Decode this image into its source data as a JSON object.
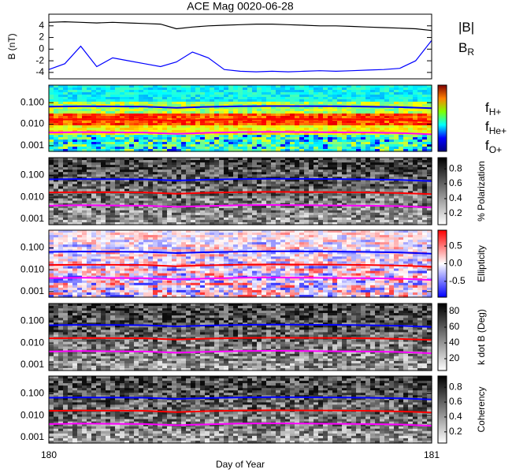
{
  "chart_data": [
    {
      "type": "line",
      "title": "ACE Mag 0020-06-28",
      "y_label": "B (nT)",
      "xlim": [
        180,
        181
      ],
      "ylim": [
        -5.1,
        6
      ],
      "yticks": [
        -4,
        -2,
        0,
        2,
        4
      ],
      "x": [
        180,
        180.0417,
        180.0833,
        180.125,
        180.1667,
        180.2083,
        180.25,
        180.2917,
        180.3333,
        180.375,
        180.4167,
        180.4583,
        180.5,
        180.5417,
        180.5833,
        180.625,
        180.6667,
        180.7083,
        180.75,
        180.7917,
        180.8333,
        180.875,
        180.9167,
        180.9583,
        181
      ],
      "series": [
        {
          "name": "|B|",
          "color": "#000000",
          "values": [
            4.6,
            4.7,
            4.6,
            4.5,
            4.6,
            4.5,
            4.4,
            4.3,
            3.5,
            3.8,
            4.0,
            4.1,
            4.2,
            4.3,
            4.3,
            4.2,
            4.1,
            4.0,
            4.0,
            3.9,
            3.8,
            3.7,
            3.6,
            3.5,
            3.2
          ]
        },
        {
          "name": "BR",
          "color": "#0000ff",
          "values": [
            -3.5,
            -2.5,
            0.5,
            -3.0,
            -1.5,
            -2.0,
            -2.5,
            -3.0,
            -2.2,
            -0.5,
            -1.5,
            -3.5,
            -3.8,
            -3.9,
            -3.8,
            -3.9,
            -3.8,
            -3.7,
            -3.8,
            -3.7,
            -3.6,
            -3.5,
            -3.3,
            -2.0,
            1.5
          ]
        }
      ]
    },
    {
      "type": "spectrogram",
      "colormap": "jet",
      "log_y": true,
      "xlim": [
        180,
        181
      ],
      "ylim": [
        0.00055,
        0.65
      ],
      "yticks": [
        {
          "value": 0.001,
          "label": "0.001"
        },
        {
          "value": 0.01,
          "label": "0.010"
        },
        {
          "value": 0.1,
          "label": "0.100"
        }
      ],
      "x": [
        180,
        180.0833,
        180.1667,
        180.25,
        180.3333,
        180.4167,
        180.5,
        180.5833,
        180.6667,
        180.75,
        180.8333,
        180.9167,
        181
      ],
      "series": [
        {
          "name": "fH+",
          "color": "#0000ff",
          "values": [
            0.066,
            0.068,
            0.067,
            0.066,
            0.058,
            0.064,
            0.068,
            0.07,
            0.069,
            0.068,
            0.066,
            0.062,
            0.055
          ]
        },
        {
          "name": "fHe+",
          "color": "#ff0000",
          "values": [
            0.0165,
            0.017,
            0.0168,
            0.0165,
            0.0145,
            0.016,
            0.017,
            0.0175,
            0.0172,
            0.017,
            0.0165,
            0.0155,
            0.0138
          ]
        },
        {
          "name": "fO+",
          "color": "#ff00ff",
          "values": [
            0.0041,
            0.0043,
            0.0042,
            0.0041,
            0.0036,
            0.004,
            0.0043,
            0.0044,
            0.0043,
            0.0042,
            0.0041,
            0.0039,
            0.0034
          ]
        }
      ]
    },
    {
      "type": "spectrogram",
      "colormap": "gray",
      "log_y": true,
      "xlim": [
        180,
        181
      ],
      "ylim": [
        0.00055,
        0.65
      ],
      "yticks": [
        {
          "value": 0.001,
          "label": "0.001"
        },
        {
          "value": 0.01,
          "label": "0.010"
        },
        {
          "value": 0.1,
          "label": "0.100"
        }
      ],
      "colorbar": {
        "label": "% Polarization",
        "lim": [
          0.05,
          0.95
        ],
        "ticks": [
          0.2,
          0.4,
          0.6,
          0.8
        ]
      }
    },
    {
      "type": "spectrogram",
      "colormap": "bwr",
      "log_y": true,
      "xlim": [
        180,
        181
      ],
      "ylim": [
        0.00055,
        0.65
      ],
      "yticks": [
        {
          "value": 0.001,
          "label": "0.001"
        },
        {
          "value": 0.01,
          "label": "0.010"
        },
        {
          "value": 0.1,
          "label": "0.100"
        }
      ],
      "colorbar": {
        "label": "Ellipticity",
        "lim": [
          -0.95,
          0.95
        ],
        "ticks": [
          -0.5,
          {
            "value": 0,
            "label": "0.0"
          },
          0.5
        ]
      }
    },
    {
      "type": "spectrogram",
      "colormap": "gray",
      "log_y": true,
      "xlim": [
        180,
        181
      ],
      "ylim": [
        0.00055,
        0.65
      ],
      "yticks": [
        {
          "value": 0.001,
          "label": "0.001"
        },
        {
          "value": 0.01,
          "label": "0.010"
        },
        {
          "value": 0.1,
          "label": "0.100"
        }
      ],
      "colorbar": {
        "label": "k dot B (Deg)",
        "lim": [
          5,
          90
        ],
        "ticks": [
          20,
          40,
          60,
          80
        ]
      }
    },
    {
      "type": "spectrogram",
      "colormap": "gray",
      "log_y": true,
      "xlim": [
        180,
        181
      ],
      "ylim": [
        0.00055,
        0.65
      ],
      "yticks": [
        {
          "value": 0.001,
          "label": "0.001"
        },
        {
          "value": 0.01,
          "label": "0.010"
        },
        {
          "value": 0.1,
          "label": "0.100"
        }
      ],
      "colorbar": {
        "label": "Coherency",
        "lim": [
          0.05,
          0.95
        ],
        "ticks": [
          0.2,
          0.4,
          0.6,
          0.8
        ]
      },
      "xticks": [
        180,
        181
      ],
      "x_label": "Day of Year"
    }
  ]
}
